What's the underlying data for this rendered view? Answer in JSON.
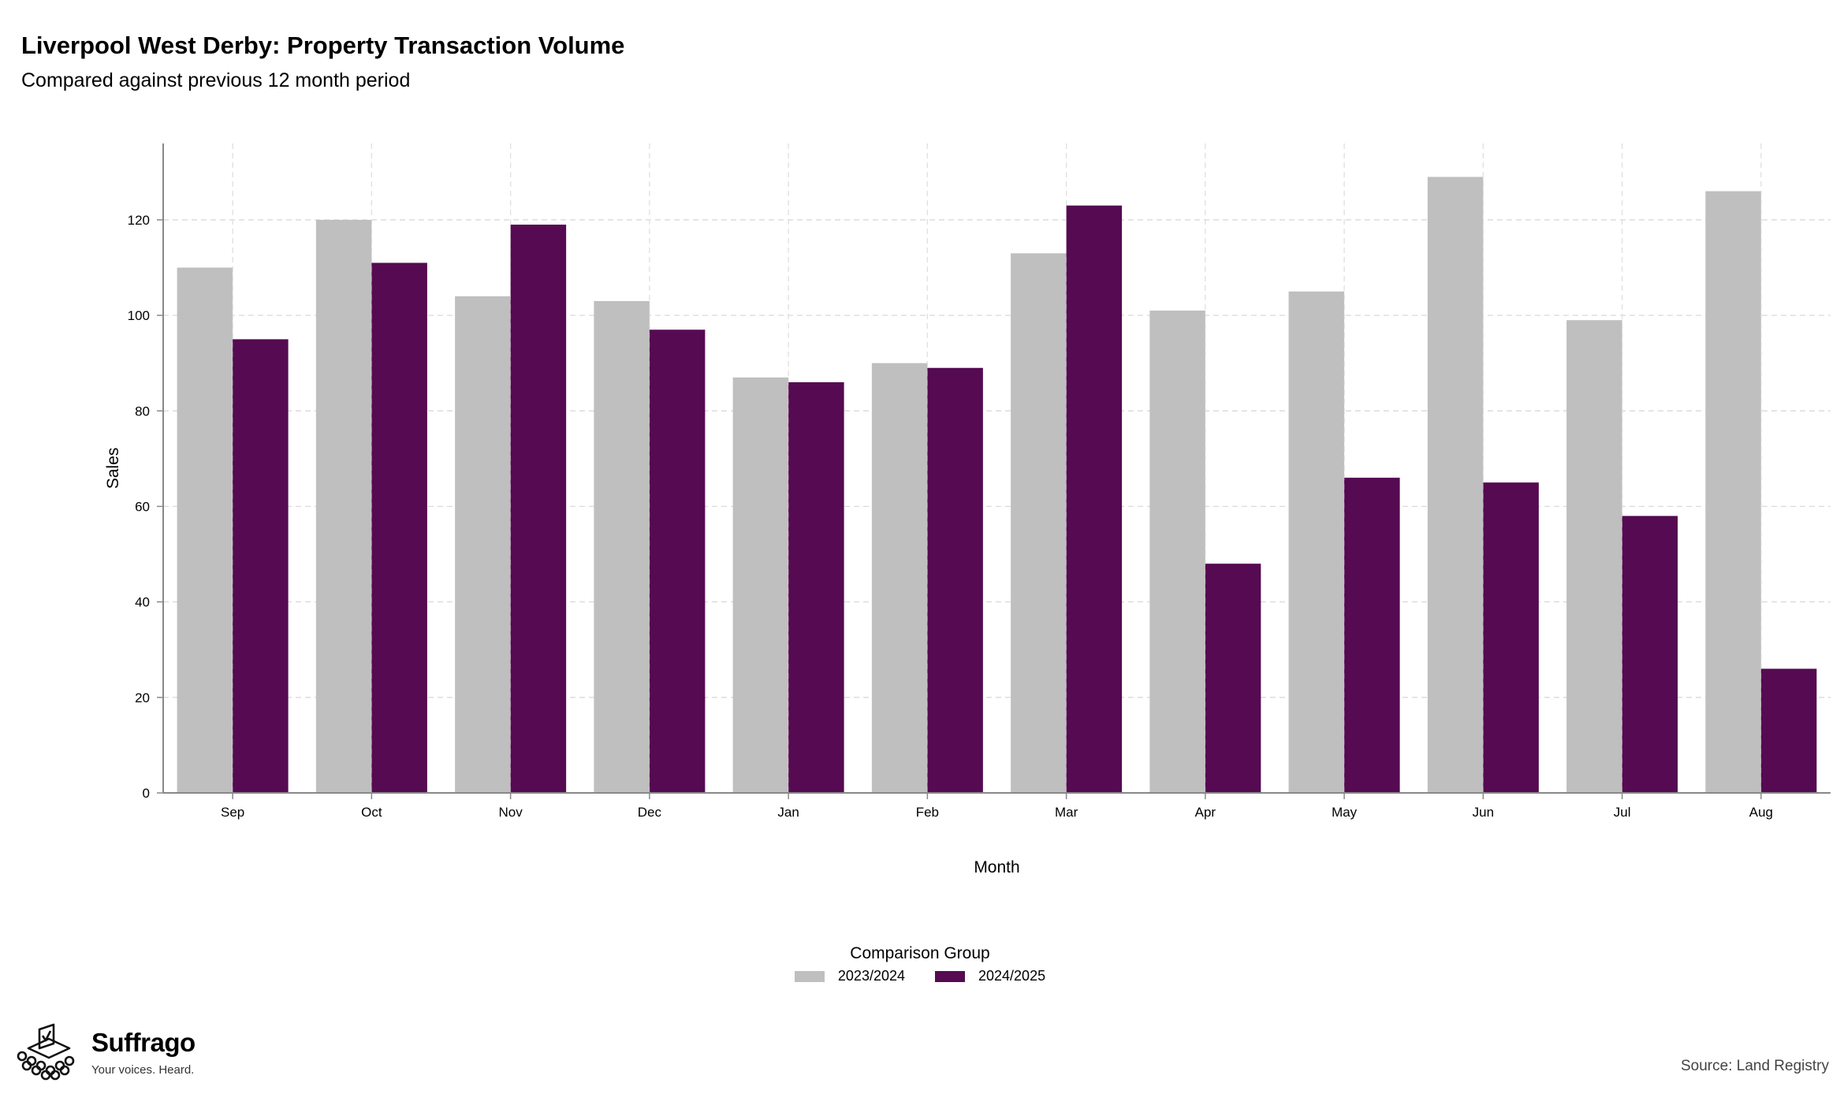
{
  "header": {
    "title": "Liverpool West Derby: Property Transaction Volume",
    "subtitle": "Compared against previous 12 month period"
  },
  "chart_data": {
    "type": "bar",
    "categories": [
      "Sep",
      "Oct",
      "Nov",
      "Dec",
      "Jan",
      "Feb",
      "Mar",
      "Apr",
      "May",
      "Jun",
      "Jul",
      "Aug"
    ],
    "series": [
      {
        "name": "2023/2024",
        "color": "#bfbfbf",
        "values": [
          110,
          120,
          104,
          103,
          87,
          90,
          113,
          101,
          105,
          129,
          99,
          126
        ]
      },
      {
        "name": "2024/2025",
        "color": "#550a51",
        "values": [
          95,
          111,
          119,
          97,
          86,
          89,
          123,
          48,
          66,
          65,
          58,
          26
        ]
      }
    ],
    "xlabel": "Month",
    "ylabel": "Sales",
    "ylim": [
      0,
      136
    ],
    "yticks": [
      0,
      20,
      40,
      60,
      80,
      100,
      120
    ],
    "grid": true,
    "legend": {
      "title": "Comparison Group",
      "position": "bottom"
    }
  },
  "footer": {
    "brand_name": "Suffrago",
    "brand_tagline": "Your voices. Heard.",
    "source": "Source: Land Registry"
  }
}
